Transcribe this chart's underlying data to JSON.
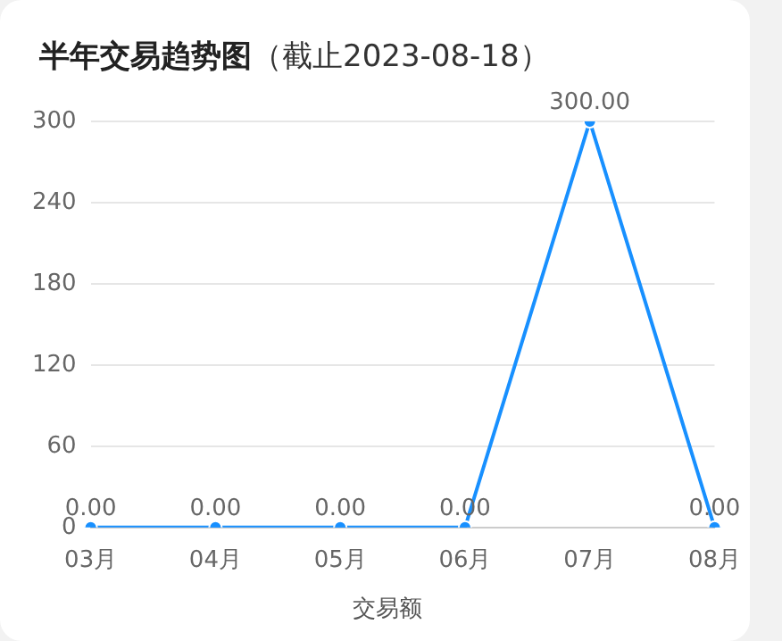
{
  "chart_data": {
    "type": "line",
    "title": "半年交易趋势图",
    "subtitle": "（截止2023-08-18）",
    "categories": [
      "03月",
      "04月",
      "05月",
      "06月",
      "07月",
      "08月"
    ],
    "series": [
      {
        "name": "交易额",
        "color": "#1890ff",
        "values": [
          0,
          0,
          0,
          0,
          300,
          0
        ],
        "value_labels": [
          "0.00",
          "0.00",
          "0.00",
          "0.00",
          "300.00",
          "0.00"
        ]
      }
    ],
    "ylim": [
      0,
      300
    ],
    "yticks": [
      0,
      60,
      120,
      180,
      240,
      300
    ],
    "grid": "y",
    "legend": "bottom",
    "marker": "circle",
    "line_style": "solid"
  }
}
